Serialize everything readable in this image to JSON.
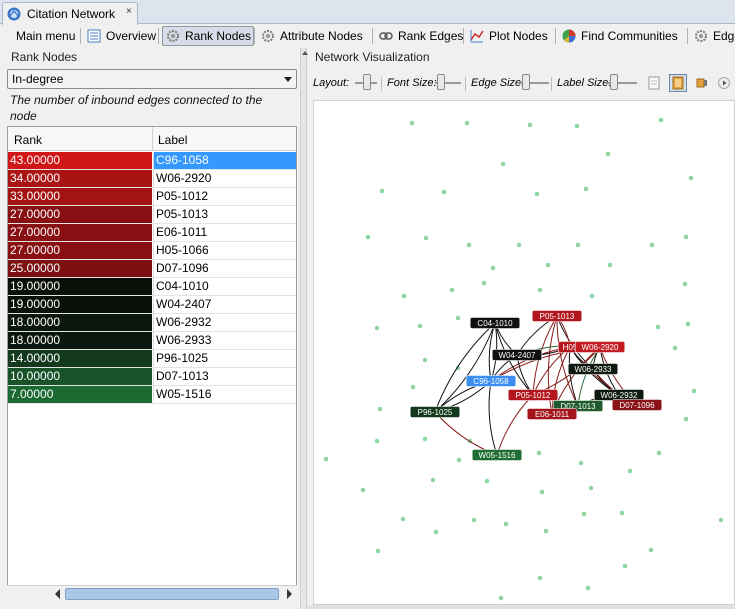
{
  "window": {
    "tab_title": "Citation Network",
    "close_glyph": "×"
  },
  "toolbar": {
    "items": [
      {
        "label": "Main menu",
        "icon": "none"
      },
      {
        "label": "Overview",
        "icon": "list-icon"
      },
      {
        "label": "Rank Nodes",
        "icon": "gear-icon",
        "active": true
      },
      {
        "label": "Attribute Nodes",
        "icon": "gear-icon"
      },
      {
        "label": "Rank Edges",
        "icon": "link-icon"
      },
      {
        "label": "Plot Nodes",
        "icon": "plot-icon"
      },
      {
        "label": "Find Communities",
        "icon": "pie-icon"
      },
      {
        "label": "Edge",
        "icon": "gear-icon"
      }
    ]
  },
  "rank_nodes": {
    "panel_title": "Rank Nodes",
    "metric": "In-degree",
    "description": "The number of inbound edges connected to the node",
    "columns": {
      "rank": "Rank",
      "label": "Label"
    },
    "rows": [
      {
        "rank": "43.00000",
        "label": "C96-1058",
        "color": "#d01616",
        "selected": true
      },
      {
        "rank": "34.00000",
        "label": "W06-2920",
        "color": "#a81414"
      },
      {
        "rank": "33.00000",
        "label": "P05-1012",
        "color": "#a41314"
      },
      {
        "rank": "27.00000",
        "label": "P05-1013",
        "color": "#881012"
      },
      {
        "rank": "27.00000",
        "label": "E06-1011",
        "color": "#881012"
      },
      {
        "rank": "27.00000",
        "label": "H05-1066",
        "color": "#881012"
      },
      {
        "rank": "25.00000",
        "label": "D07-1096",
        "color": "#7c0f10"
      },
      {
        "rank": "19.00000",
        "label": "C04-1010",
        "color": "#0b0f0a"
      },
      {
        "rank": "19.00000",
        "label": "W04-2407",
        "color": "#0b0f0a"
      },
      {
        "rank": "18.00000",
        "label": "W06-2932",
        "color": "#0b170e"
      },
      {
        "rank": "18.00000",
        "label": "W06-2933",
        "color": "#0b170e"
      },
      {
        "rank": "14.00000",
        "label": "P96-1025",
        "color": "#143a1d"
      },
      {
        "rank": "10.00000",
        "label": "D07-1013",
        "color": "#18532a"
      },
      {
        "rank": "7.00000",
        "label": "W05-1516",
        "color": "#1b6a32"
      }
    ]
  },
  "network": {
    "panel_title": "Network Visualization",
    "controls": {
      "layout": "Layout:",
      "font_size": "Font Size:",
      "edge_size": "Edge Size:",
      "label_size": "Label Size:"
    },
    "colors": {
      "background_dot": "#8fd6a4",
      "edge_red": "#8a1a1a",
      "edge_black": "#111111",
      "edge_green": "#2c6b3a",
      "selected": "#3c8ef0"
    },
    "nodes": [
      {
        "label": "P05-1013",
        "color": "#b3161c"
      },
      {
        "label": "C04-1010",
        "color": "#101010"
      },
      {
        "label": "H05",
        "color": "#b3161c"
      },
      {
        "label": "W06-2920",
        "color": "#c21d22"
      },
      {
        "label": "W04-2407",
        "color": "#101010"
      },
      {
        "label": "W06-2933",
        "color": "#0e1a10"
      },
      {
        "label": "C96-1058",
        "color": "#3c8ef0"
      },
      {
        "label": "P05-1012",
        "color": "#b3161c"
      },
      {
        "label": "W06-2932",
        "color": "#0e1a10"
      },
      {
        "label": "D07-1013",
        "color": "#1f5a2d"
      },
      {
        "label": "D07-1096",
        "color": "#8b1216"
      },
      {
        "label": "E06-1011",
        "color": "#a3151a"
      },
      {
        "label": "P96-1025",
        "color": "#143a1d"
      },
      {
        "label": "W05-1516",
        "color": "#1f6d34"
      }
    ]
  }
}
